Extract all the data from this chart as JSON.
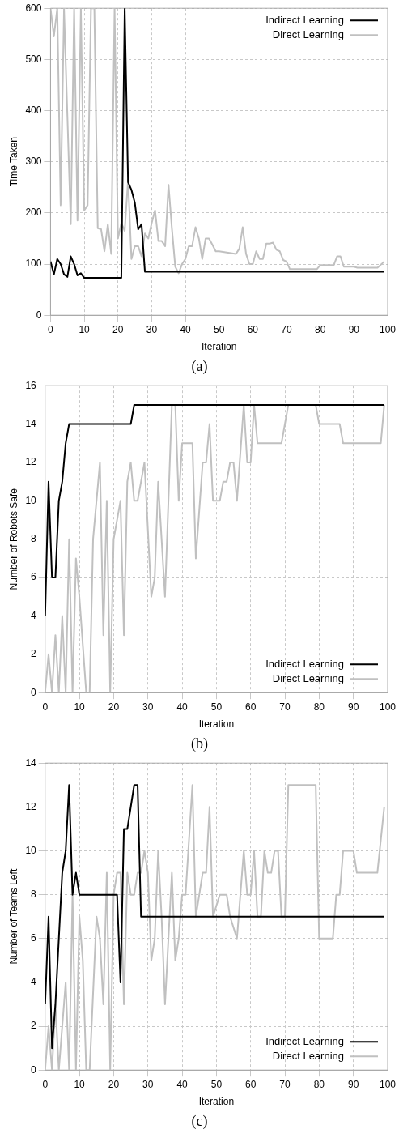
{
  "chart_data": [
    {
      "type": "line",
      "xlabel": "Iteration",
      "ylabel": "Time Taken",
      "xlim": [
        0,
        100
      ],
      "xticks": [
        0,
        10,
        20,
        30,
        40,
        50,
        60,
        70,
        80,
        90,
        100
      ],
      "ylim": [
        0,
        600
      ],
      "yticks": [
        0,
        100,
        200,
        300,
        400,
        500,
        600
      ],
      "grid": true,
      "legend": "top right",
      "line_style": "solid",
      "marker": "none",
      "annotations": [
        "(a)"
      ],
      "series": [
        {
          "name": "Indirect Learning",
          "color": "#000000",
          "x": [
            0,
            1,
            2,
            3,
            4,
            5,
            6,
            7,
            8,
            9,
            10,
            21,
            22,
            23,
            24,
            25,
            26,
            27,
            28,
            99
          ],
          "values": [
            105,
            80,
            110,
            100,
            80,
            75,
            115,
            100,
            78,
            82,
            73,
            73,
            600,
            260,
            245,
            220,
            168,
            178,
            85,
            85
          ]
        },
        {
          "name": "Direct Learning",
          "color": "#c0c0c0",
          "x": [
            0,
            1,
            2,
            3,
            4,
            5,
            6,
            7,
            8,
            9,
            10,
            11,
            12,
            13,
            14,
            15,
            16,
            17,
            18,
            19,
            20,
            21,
            22,
            23,
            24,
            25,
            26,
            27,
            28,
            29,
            30,
            31,
            32,
            33,
            34,
            35,
            36,
            37,
            38,
            39,
            40,
            41,
            42,
            43,
            44,
            45,
            46,
            47,
            48,
            49,
            50,
            55,
            56,
            57,
            58,
            59,
            60,
            61,
            62,
            63,
            64,
            65,
            66,
            67,
            68,
            69,
            70,
            71,
            79,
            80,
            84,
            85,
            86,
            87,
            90,
            91,
            97,
            99
          ],
          "values": [
            600,
            545,
            600,
            215,
            600,
            390,
            178,
            600,
            185,
            600,
            205,
            215,
            600,
            600,
            170,
            168,
            125,
            178,
            120,
            600,
            150,
            180,
            165,
            265,
            110,
            135,
            135,
            115,
            160,
            150,
            180,
            205,
            145,
            145,
            135,
            255,
            170,
            95,
            82,
            100,
            110,
            135,
            135,
            172,
            150,
            110,
            150,
            150,
            138,
            125,
            125,
            120,
            130,
            172,
            120,
            100,
            100,
            125,
            110,
            110,
            140,
            140,
            142,
            128,
            125,
            108,
            105,
            90,
            90,
            98,
            98,
            115,
            115,
            95,
            95,
            93,
            93,
            105
          ]
        }
      ]
    },
    {
      "type": "line",
      "xlabel": "Iteration",
      "ylabel": "Number of Robots Safe",
      "xlim": [
        0,
        100
      ],
      "xticks": [
        0,
        10,
        20,
        30,
        40,
        50,
        60,
        70,
        80,
        90,
        100
      ],
      "ylim": [
        0,
        16
      ],
      "yticks": [
        0,
        2,
        4,
        6,
        8,
        10,
        12,
        14,
        16
      ],
      "grid": true,
      "legend": "bottom right",
      "line_style": "solid",
      "marker": "none",
      "annotations": [
        "(b)"
      ],
      "series": [
        {
          "name": "Indirect Learning",
          "color": "#000000",
          "x": [
            0,
            1,
            2,
            3,
            4,
            5,
            6,
            7,
            25,
            26,
            99
          ],
          "values": [
            4,
            11,
            6,
            6,
            10,
            11,
            13,
            14,
            14,
            15,
            15
          ]
        },
        {
          "name": "Direct Learning",
          "color": "#c0c0c0",
          "x": [
            0,
            1,
            2,
            3,
            4,
            5,
            6,
            7,
            8,
            9,
            10,
            12,
            13,
            14,
            16,
            17,
            18,
            19,
            20,
            22,
            23,
            24,
            25,
            26,
            27,
            29,
            31,
            32,
            33,
            35,
            37,
            38,
            39,
            40,
            43,
            44,
            46,
            47,
            48,
            49,
            51,
            52,
            53,
            54,
            55,
            56,
            58,
            59,
            60,
            61,
            62,
            69,
            71,
            79,
            80,
            86,
            87,
            98,
            99
          ],
          "values": [
            0,
            2,
            0,
            3,
            0,
            4,
            0,
            8,
            0,
            7,
            5,
            0,
            0,
            8,
            12,
            3,
            10,
            0,
            8,
            10,
            3,
            11,
            12,
            10,
            10,
            12,
            5,
            6,
            11,
            5,
            15,
            15,
            10,
            13,
            13,
            7,
            12,
            12,
            14,
            10,
            10,
            11,
            11,
            12,
            12,
            10,
            15,
            12,
            12,
            15,
            13,
            13,
            15,
            15,
            14,
            14,
            13,
            13,
            15
          ]
        }
      ]
    },
    {
      "type": "line",
      "xlabel": "Iteration",
      "ylabel": "Number of Teams Left",
      "xlim": [
        0,
        100
      ],
      "xticks": [
        0,
        10,
        20,
        30,
        40,
        50,
        60,
        70,
        80,
        90,
        100
      ],
      "ylim": [
        0,
        14
      ],
      "yticks": [
        0,
        2,
        4,
        6,
        8,
        10,
        12,
        14
      ],
      "grid": true,
      "legend": "bottom right",
      "line_style": "solid",
      "marker": "none",
      "annotations": [
        "(c)"
      ],
      "series": [
        {
          "name": "Indirect Learning",
          "color": "#000000",
          "x": [
            0,
            1,
            2,
            3,
            5,
            6,
            7,
            8,
            9,
            10,
            21,
            22,
            23,
            24,
            26,
            27,
            28,
            99
          ],
          "values": [
            3,
            7,
            1,
            3,
            9,
            10,
            13,
            8,
            9,
            8,
            8,
            4,
            11,
            11,
            13,
            13,
            7,
            7
          ]
        },
        {
          "name": "Direct Learning",
          "color": "#c0c0c0",
          "x": [
            0,
            1,
            2,
            3,
            4,
            6,
            7,
            8,
            9,
            10,
            11,
            12,
            13,
            15,
            16,
            17,
            18,
            19,
            20,
            21,
            22,
            23,
            24,
            25,
            26,
            27,
            28,
            29,
            30,
            31,
            32,
            33,
            34,
            35,
            36,
            37,
            38,
            39,
            40,
            41,
            43,
            44,
            46,
            47,
            48,
            49,
            51,
            53,
            54,
            56,
            58,
            59,
            60,
            61,
            62,
            63,
            64,
            65,
            66,
            67,
            68,
            69,
            70,
            71,
            79,
            80,
            84,
            85,
            86,
            87,
            90,
            91,
            97,
            99
          ],
          "values": [
            0,
            2,
            0,
            3,
            0,
            4,
            0,
            8,
            0,
            7,
            5,
            0,
            0,
            7,
            6,
            3,
            9,
            0,
            8,
            9,
            9,
            3,
            9,
            8,
            8,
            9,
            9,
            10,
            9,
            5,
            6,
            10,
            7,
            3,
            6,
            9,
            5,
            6,
            8,
            8,
            13,
            7,
            9,
            9,
            12,
            7,
            8,
            8,
            7,
            6,
            10,
            8,
            8,
            10,
            7,
            7,
            10,
            9,
            9,
            10,
            10,
            7,
            7,
            13,
            13,
            6,
            6,
            8,
            8,
            10,
            10,
            9,
            9,
            12
          ]
        }
      ]
    }
  ]
}
